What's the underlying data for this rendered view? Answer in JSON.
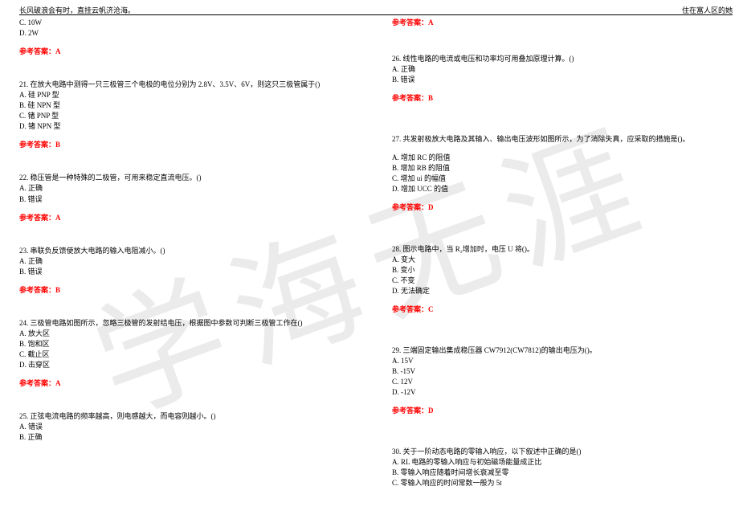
{
  "header": {
    "left": "长风破浪会有时，直挂云帆济沧海。",
    "right": "住在富人区的她"
  },
  "watermark": "学海无涯",
  "col1": {
    "q20_cont": {
      "c": "C. 10W",
      "d": "D. 2W",
      "ans": "参考答案：A"
    },
    "q21": {
      "text": "21. 在放大电路中测得一只三极管三个电极的电位分别为 2.8V、3.5V、6V，则这只三极管属于()",
      "a": "A. 硅 PNP 型",
      "b": "B. 硅 NPN 型",
      "c": "C. 锗 PNP 型",
      "d": "D. 锗 NPN 型",
      "ans": "参考答案：B"
    },
    "q22": {
      "text": "22. 稳压管是一种特殊的二极管，可用来稳定直流电压。()",
      "a": "A. 正确",
      "b": "B. 错误",
      "ans": "参考答案：A"
    },
    "q23": {
      "text": "23. 串联负反馈使放大电路的输入电阻减小。()",
      "a": "A. 正确",
      "b": "B. 错误",
      "ans": "参考答案：B"
    },
    "q24": {
      "text": "24. 三极管电路如图所示，忽略三极管的发射结电压，根据图中参数可判断三极管工作在()",
      "a": "A. 放大区",
      "b": "B. 饱和区",
      "c": "C. 截止区",
      "d": "D. 击穿区",
      "ans": "参考答案：A"
    },
    "q25": {
      "text": "25. 正弦电流电路的频率越高，则电感越大，而电容则越小。()",
      "a": "A. 错误",
      "b": "B. 正确"
    }
  },
  "col2": {
    "q25_ans": "参考答案：A",
    "q26": {
      "text": "26. 线性电路的电流或电压和功率均可用叠加原理计算。()",
      "a": "A. 正确",
      "b": "B. 错误",
      "ans": "参考答案：B"
    },
    "q27": {
      "text": "27. 共发射极放大电路及其输入、输出电压波形如图所示，为了消除失真，应采取的措施是()。",
      "a": "A. 增加 RC 的阻值",
      "b": "B. 增加 RB 的阻值",
      "c": "C. 增加 ui 的幅值",
      "d": "D. 增加 UCC 的值",
      "ans": "参考答案：D"
    },
    "q28": {
      "text": "28. 图示电路中，当 R₂增加时，电压 U 将()。",
      "a": "A. 变大",
      "b": "B. 变小",
      "c": "C. 不变",
      "d": "D. 无法确定",
      "ans": "参考答案：C"
    },
    "q29": {
      "text": "29. 三端固定输出集成稳压器 CW7912(CW7812)的输出电压为()。",
      "a": "A. 15V",
      "b": "B. -15V",
      "c": "C. 12V",
      "d": "D. -12V",
      "ans": "参考答案：D"
    },
    "q30": {
      "text": "30. 关于一阶动态电路的零输入响应，以下叙述中正确的是()",
      "a": "A. RL 电路的零输入响应与初始磁场能量成正比",
      "b": "B. 零输入响应随着时间增长衰减至零",
      "c": "C. 零输入响应的时间常数一般为 5t"
    }
  }
}
